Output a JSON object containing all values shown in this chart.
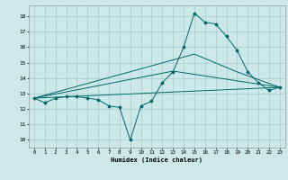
{
  "xlabel": "Humidex (Indice chaleur)",
  "bg_color": "#cce8e8",
  "grid_color": "#aacccc",
  "line_color": "#006868",
  "xlim": [
    -0.5,
    23.5
  ],
  "ylim": [
    9.5,
    18.7
  ],
  "yticks": [
    10,
    11,
    12,
    13,
    14,
    15,
    16,
    17,
    18
  ],
  "xticks": [
    0,
    1,
    2,
    3,
    4,
    5,
    6,
    7,
    8,
    9,
    10,
    11,
    12,
    13,
    14,
    15,
    16,
    17,
    18,
    19,
    20,
    21,
    22,
    23
  ],
  "line1_x": [
    0,
    1,
    2,
    3,
    4,
    5,
    6,
    7,
    8,
    9,
    10,
    11,
    12,
    13,
    14,
    15,
    16,
    17,
    18,
    19,
    20,
    21,
    22,
    23
  ],
  "line1_y": [
    12.7,
    12.4,
    12.7,
    12.8,
    12.8,
    12.7,
    12.6,
    12.2,
    12.1,
    10.0,
    12.2,
    12.5,
    13.7,
    14.4,
    16.0,
    18.2,
    17.6,
    17.5,
    16.7,
    15.8,
    14.4,
    13.7,
    13.2,
    13.4
  ],
  "line2_x": [
    0,
    23
  ],
  "line2_y": [
    12.7,
    13.4
  ],
  "line3_x": [
    0,
    13,
    23
  ],
  "line3_y": [
    12.7,
    14.45,
    13.4
  ],
  "line4_x": [
    0,
    15,
    19,
    23
  ],
  "line4_y": [
    12.7,
    15.55,
    14.4,
    13.4
  ]
}
